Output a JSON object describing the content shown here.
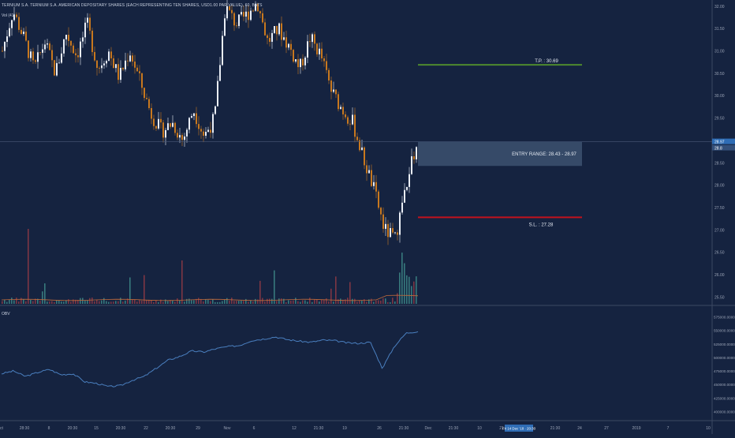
{
  "title": "TERNIUM S.A. TERNIUM S.A. AMERICAN DEPOSITARY SHARES (EACH REPRESENTING TEN SHARES, USD1.00 PAR VALUE), 60, BATS",
  "volume_label": "Vol (41)",
  "obv_label": "OBV",
  "colors": {
    "background": "#152340",
    "grid": "#1f2d4a",
    "up": "#e9edf5",
    "down": "#c8781e",
    "tp_line": "#4e8a2e",
    "sl_line": "#c2121d",
    "entry_box": "#3c5170",
    "obv_line": "#4a7fbf",
    "axis_text": "#9aa3b5",
    "price_tag": "#2f6db5"
  },
  "annotations": {
    "tp_label": "T.P. : 30.69",
    "sl_label": "S.L. : 27.28",
    "entry_label": "ENTRY RANGE: 28.43 - 28.97"
  },
  "price_axis": {
    "ticks": [
      "32.00",
      "31.50",
      "31.00",
      "30.50",
      "30.00",
      "29.50",
      "28.50",
      "28.00",
      "27.50",
      "27.00",
      "26.50",
      "26.00",
      "25.50"
    ],
    "current_price": "28.97",
    "current_price_b": "28.8"
  },
  "obv_axis": {
    "ticks": [
      "575000.0000",
      "550000.0000",
      "525000.0000",
      "500000.0000",
      "475000.0000",
      "450000.0000",
      "425000.0000",
      "400000.0000"
    ]
  },
  "time_axis": {
    "ticks": [
      "ct",
      "28:30",
      "8",
      "20:30",
      "15",
      "20:30",
      "22",
      "20:30",
      "29",
      "Nov",
      "6",
      "12",
      "21:30",
      "19",
      "26",
      "21:30",
      "Dec",
      "21:30",
      "10",
      "21",
      "21:30",
      "24",
      "27",
      "2019",
      "7",
      "10"
    ],
    "highlight": "Fri 14 Dec '18 · 20:30"
  },
  "chart_data": {
    "type": "candlestick",
    "price_range": [
      25.4,
      32.05
    ],
    "obv_range": [
      395000,
      580000
    ],
    "levels": {
      "take_profit": 30.69,
      "stop_loss": 27.28,
      "entry_low": 28.43,
      "entry_high": 28.97,
      "last": 28.97
    },
    "anchors": [
      31.0,
      31.9,
      31.3,
      30.6,
      31.2,
      30.5,
      31.4,
      30.9,
      31.6,
      30.6,
      31.0,
      30.4,
      31.0,
      30.3,
      29.6,
      29.2,
      29.4,
      29.0,
      29.7,
      29.1,
      29.5,
      32.0,
      31.6,
      31.8,
      32.1,
      31.2,
      31.5,
      31.1,
      30.6,
      31.3,
      30.9,
      30.1,
      29.7,
      29.4,
      28.6,
      27.9,
      27.0,
      26.8,
      28.0,
      28.9
    ],
    "obv_anchors": [
      470000,
      475000,
      465000,
      472000,
      478000,
      468000,
      470000,
      455000,
      452000,
      446000,
      448000,
      458000,
      465000,
      480000,
      495000,
      502000,
      512000,
      510000,
      516000,
      520000,
      522000,
      531000,
      534000,
      538000,
      533000,
      530000,
      528000,
      532000,
      531000,
      527000,
      526000,
      528000,
      480000,
      520000,
      545000,
      548000
    ]
  }
}
